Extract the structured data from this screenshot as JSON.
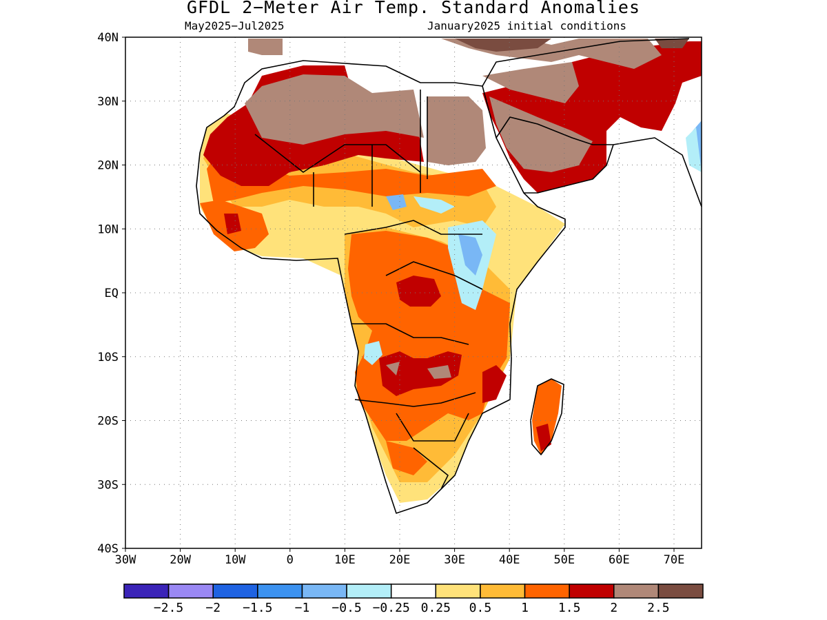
{
  "title": "GFDL 2−Meter Air Temp. Standard Anomalies",
  "subtitle_left": "May2025−Jul2025",
  "subtitle_right": "January2025 initial conditions",
  "lat_labels": [
    "40N",
    "30N",
    "20N",
    "10N",
    "EQ",
    "10S",
    "20S",
    "30S",
    "40S"
  ],
  "lon_labels": [
    "30W",
    "20W",
    "10W",
    "0",
    "10E",
    "20E",
    "30E",
    "40E",
    "50E",
    "60E",
    "70E"
  ],
  "colorbar": {
    "colors": [
      "#3b24b8",
      "#9a88f4",
      "#1f63e2",
      "#3c92f0",
      "#79b7f5",
      "#b3eef8",
      "#ffffff",
      "#ffe27a",
      "#ffbb37",
      "#ff6400",
      "#c00000",
      "#b08878",
      "#7a4c40"
    ],
    "tick_labels": [
      "−2.5",
      "−2",
      "−1.5",
      "−1",
      "−0.5",
      "−0.25",
      "0.25",
      "0.5",
      "1",
      "1.5",
      "2",
      "2.5"
    ]
  }
}
